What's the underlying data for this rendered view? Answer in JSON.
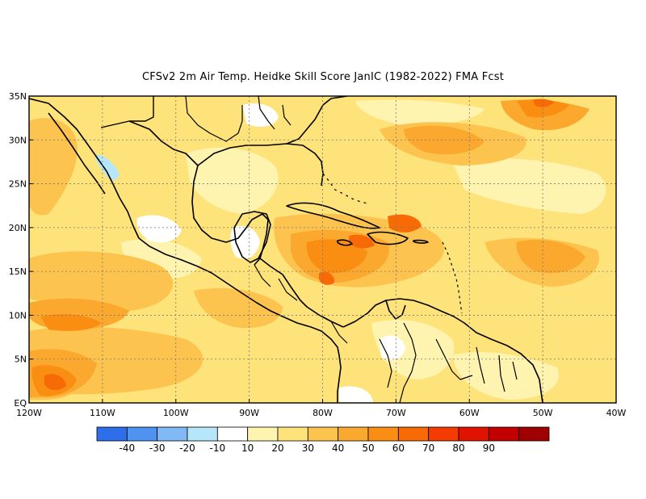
{
  "title": "CFSv2  2m Air Temp. Heidke Skill Score JanIC (1982-2022) FMA Fcst",
  "map": {
    "lon_range": [
      -120,
      -40
    ],
    "lat_range": [
      0,
      35
    ],
    "lat_ticks": [
      {
        "value": 35,
        "label": "35N"
      },
      {
        "value": 30,
        "label": "30N"
      },
      {
        "value": 25,
        "label": "25N"
      },
      {
        "value": 20,
        "label": "20N"
      },
      {
        "value": 15,
        "label": "15N"
      },
      {
        "value": 10,
        "label": "10N"
      },
      {
        "value": 5,
        "label": "5N"
      },
      {
        "value": 0,
        "label": "EQ"
      }
    ],
    "lon_ticks": [
      {
        "value": -120,
        "label": "120W"
      },
      {
        "value": -110,
        "label": "110W"
      },
      {
        "value": -100,
        "label": "100W"
      },
      {
        "value": -90,
        "label": "90W"
      },
      {
        "value": -80,
        "label": "80W"
      },
      {
        "value": -70,
        "label": "70W"
      },
      {
        "value": -60,
        "label": "60W"
      },
      {
        "value": -50,
        "label": "50W"
      },
      {
        "value": -40,
        "label": "40W"
      }
    ],
    "gridlines": "dotted",
    "background_class": "10-20"
  },
  "colorbar": {
    "colors": [
      "#2c6fe8",
      "#4f93f0",
      "#80b9f5",
      "#b6e6f9",
      "#ffffff",
      "#fff3b0",
      "#fde37a",
      "#fdc34f",
      "#fba92e",
      "#f98e12",
      "#f76a06",
      "#f43c02",
      "#e01200",
      "#c20000",
      "#a00000"
    ],
    "labels": [
      "-40",
      "-30",
      "-20",
      "-10",
      "10",
      "20",
      "30",
      "40",
      "50",
      "60",
      "70",
      "80",
      "90"
    ]
  }
}
